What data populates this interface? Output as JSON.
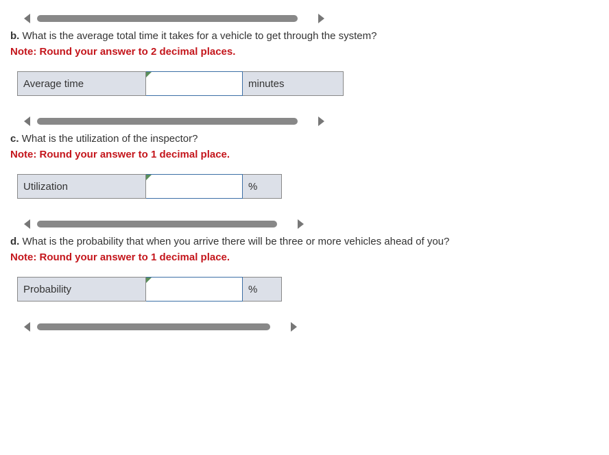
{
  "scrollbar": {
    "bar_color": "#888",
    "arrow_color": "#777"
  },
  "questions": [
    {
      "id": "b",
      "part": "b.",
      "text": "What is the average total time it takes for a vehicle to get through the system?",
      "note": "Note: Round your answer to 2 decimal places.",
      "label": "Average time",
      "unit": "minutes",
      "unit_width": 130,
      "top_bar_width": 380,
      "bottom_bar_width": 380
    },
    {
      "id": "c",
      "part": "c.",
      "text": "What is the utilization of the inspector?",
      "note": "Note: Round your answer to 1 decimal place.",
      "label": "Utilization",
      "unit": "%",
      "unit_width": 40,
      "top_bar_width": 380,
      "bottom_bar_width": 350
    },
    {
      "id": "d",
      "part": "d.",
      "text": "What is the probability that when you arrive there will be three or more vehicles ahead of you?",
      "note": "Note: Round your answer to 1 decimal place.",
      "label": "Probability",
      "unit": "%",
      "unit_width": 40,
      "top_bar_width": 350,
      "bottom_bar_width": 340
    }
  ]
}
